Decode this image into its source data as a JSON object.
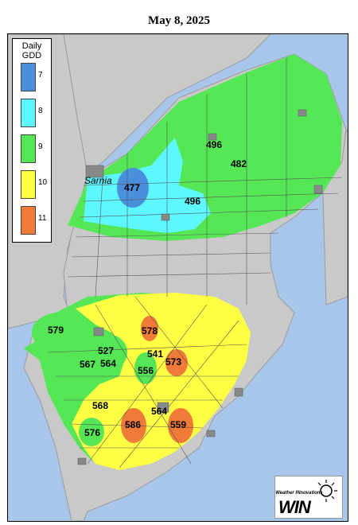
{
  "title": "May 8, 2025",
  "legend": {
    "title_line1": "Daily",
    "title_line2": "GDD",
    "items": [
      {
        "label": "7",
        "color": "#4a8fdc"
      },
      {
        "label": "8",
        "color": "#5cf7ff"
      },
      {
        "label": "9",
        "color": "#55e655"
      },
      {
        "label": "10",
        "color": "#ffff44"
      },
      {
        "label": "11",
        "color": "#f07a38"
      }
    ]
  },
  "city": "Sarnia",
  "values": [
    "477",
    "496",
    "496",
    "482",
    "579",
    "578",
    "527",
    "541",
    "573",
    "567",
    "564",
    "556",
    "568",
    "564",
    "576",
    "586",
    "559"
  ],
  "logo": {
    "tagline": "Weather INnovations",
    "name": "WIN"
  }
}
